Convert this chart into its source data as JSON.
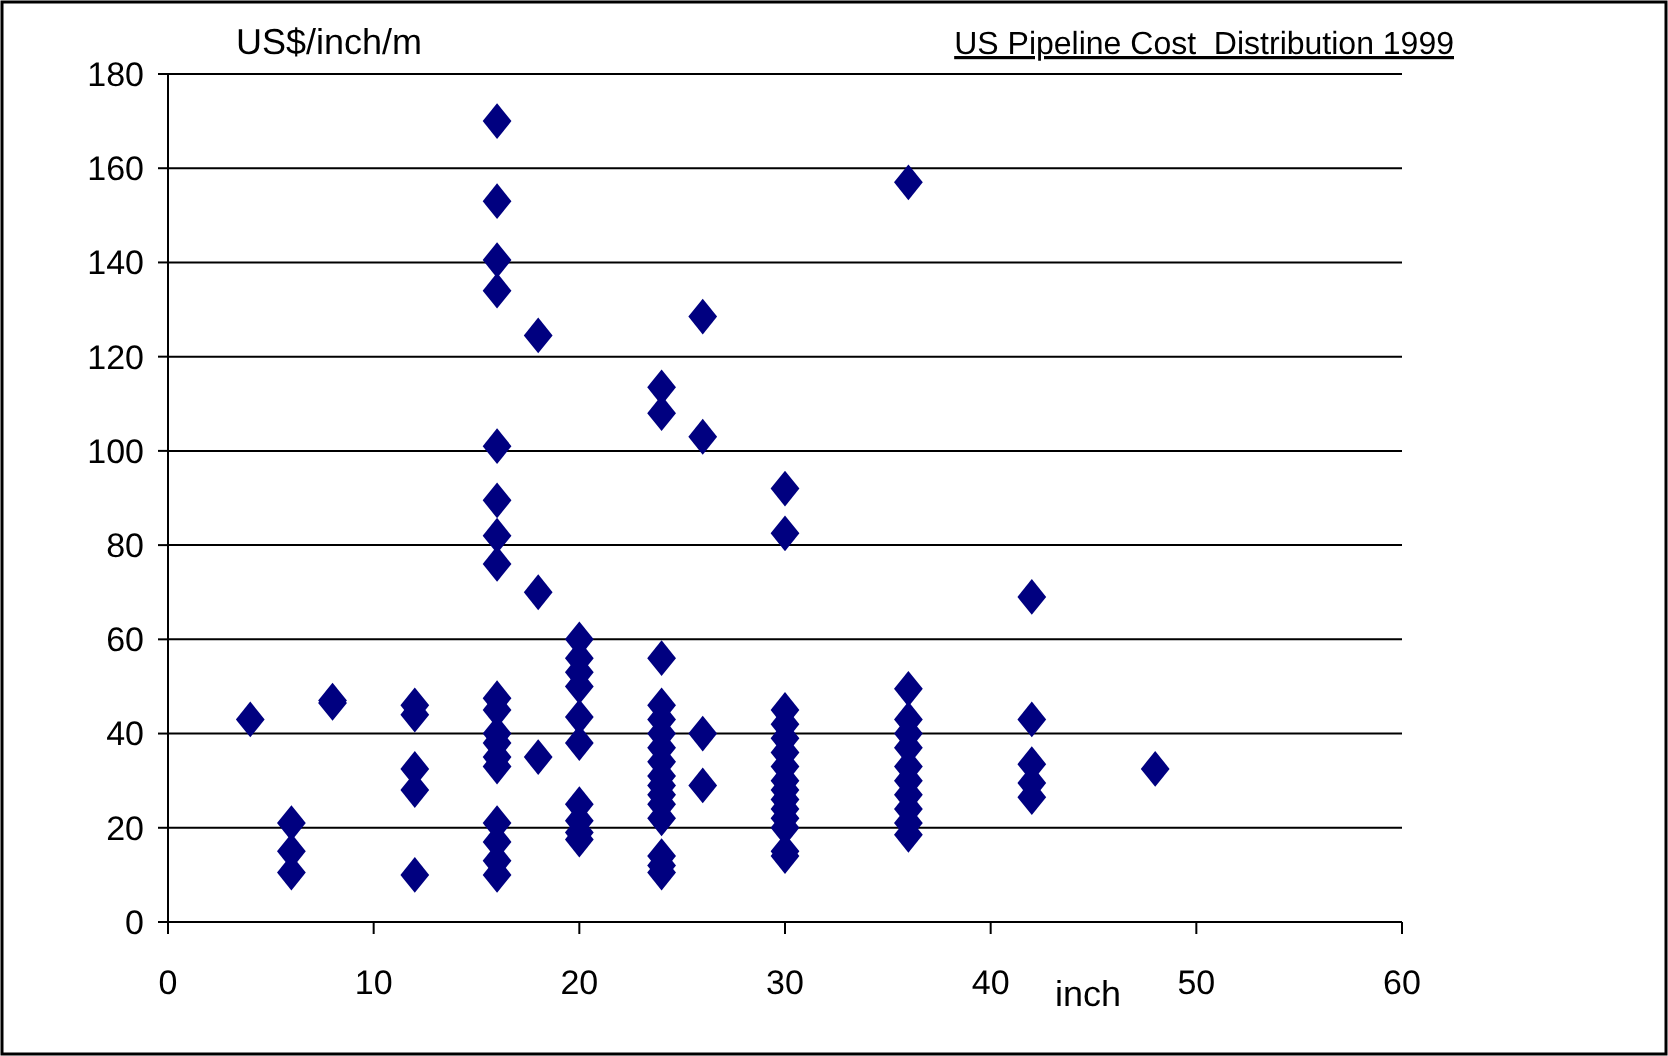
{
  "chart_data": {
    "type": "scatter",
    "title": "US Pipeline Cost  Distribution 1999",
    "xlabel": "inch",
    "ylabel": "US$/inch/m",
    "x": [
      4,
      6,
      6,
      6,
      8,
      8,
      12,
      12,
      12,
      12,
      12,
      16,
      16,
      16,
      16,
      16,
      16,
      16,
      16,
      16,
      16,
      16,
      16,
      16,
      16,
      16,
      16,
      16,
      16,
      18,
      18,
      18,
      20,
      20,
      20,
      20,
      20,
      20,
      20,
      20,
      20,
      20,
      24,
      24,
      24,
      24,
      24,
      24,
      24,
      24,
      24,
      24,
      24,
      24,
      24,
      24,
      24,
      24,
      26,
      26,
      26,
      26,
      30,
      30,
      30,
      30,
      30,
      30,
      30,
      30,
      30,
      30,
      30,
      30,
      30,
      30,
      30,
      36,
      36,
      36,
      36,
      36,
      36,
      36,
      36,
      36,
      36,
      36,
      42,
      42,
      42,
      42,
      42,
      48
    ],
    "series": [
      {
        "color": "#000080",
        "values": [
          43,
          21,
          15,
          10.5,
          46.5,
          47,
          46,
          44,
          32.5,
          28,
          10,
          170,
          153,
          140.5,
          134,
          101,
          89.5,
          82,
          76,
          47.5,
          45,
          40,
          38,
          35,
          33,
          21,
          17,
          13,
          10,
          124.5,
          70,
          35,
          60,
          56,
          53,
          50,
          43.5,
          38,
          25,
          21.5,
          19,
          17.5,
          113.5,
          108,
          56,
          46,
          43,
          40,
          37,
          34,
          31,
          29,
          27,
          25,
          22,
          14,
          12,
          10.5,
          128.5,
          103,
          40,
          29,
          92,
          82.5,
          45,
          42,
          39,
          36,
          33,
          30,
          28,
          26,
          24,
          22,
          20,
          15,
          14,
          157,
          49.5,
          43,
          40,
          37,
          33,
          30,
          27,
          24,
          21,
          18.5,
          69,
          43,
          33.5,
          29.5,
          26.5,
          32.5
        ]
      }
    ],
    "xlim": [
      0,
      60
    ],
    "xticks": [
      0,
      10,
      20,
      30,
      40,
      50,
      60
    ],
    "ylim": [
      0,
      180
    ],
    "yticks": [
      0,
      20,
      40,
      60,
      80,
      100,
      120,
      140,
      160,
      180
    ],
    "grid": "y",
    "marker": "diamond"
  }
}
